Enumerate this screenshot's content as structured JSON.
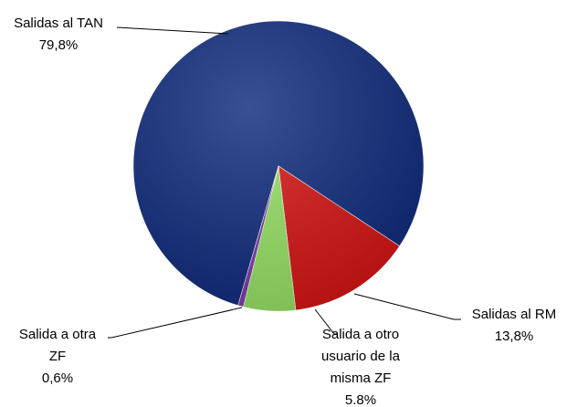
{
  "chart_data": {
    "type": "pie",
    "categories": [
      "Salidas al TAN",
      "Salidas al RM",
      "Salida a otro usuario de la misma ZF",
      "Salida a otra ZF"
    ],
    "values": [
      79.8,
      13.8,
      5.8,
      0.6
    ],
    "value_labels": [
      "79,8%",
      "13,8%",
      "5.8%",
      "0,6%"
    ],
    "colors": [
      "#0f2a7c",
      "#d51414",
      "#96e064",
      "#7a3aa8"
    ]
  }
}
